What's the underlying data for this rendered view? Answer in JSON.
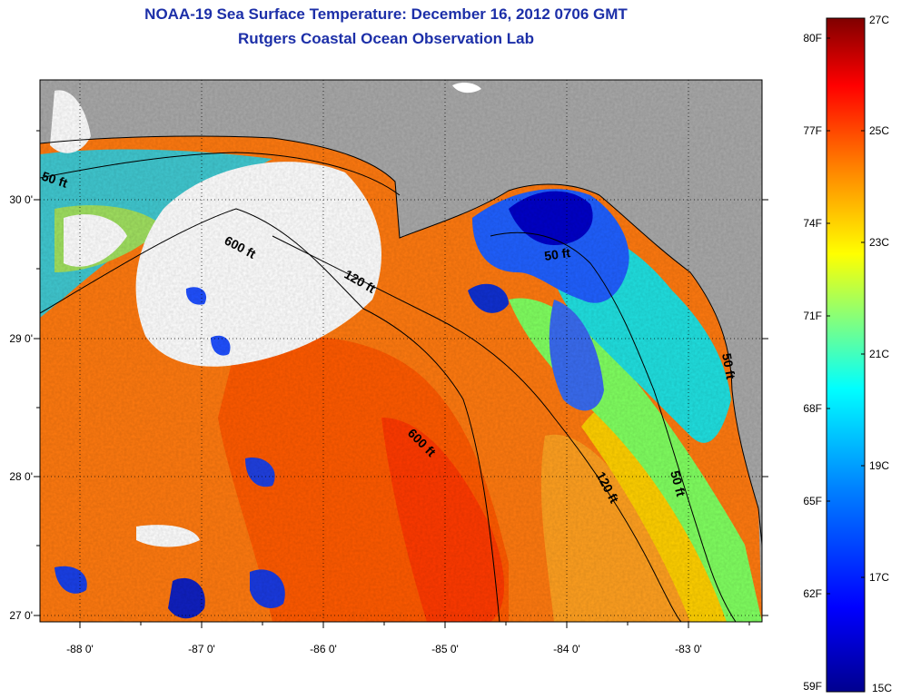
{
  "title_line1": "NOAA-19 Sea Surface Temperature:  December 16, 2012 0706 GMT",
  "title_line2": "Rutgers Coastal Ocean Observation Lab",
  "longitude_ticks": [
    "-88 0'",
    "-87 0'",
    "-86 0'",
    "-85 0'",
    "-84 0'",
    "-83 0'"
  ],
  "latitude_ticks": [
    "30 0'",
    "29 0'",
    "28 0'",
    "27 0'"
  ],
  "contour_labels": [
    "50 ft",
    "600 ft",
    "120 ft",
    "50 ft",
    "600 ft",
    "120 ft",
    "50 ft",
    "50 ft"
  ],
  "colorbar": {
    "fahrenheit": [
      "80F",
      "77F",
      "74F",
      "71F",
      "68F",
      "65F",
      "62F",
      "59F"
    ],
    "celsius": [
      "27C",
      "25C",
      "23C",
      "21C",
      "19C",
      "17C",
      "15C"
    ],
    "min_c": 15,
    "max_c": 27
  },
  "colors": {
    "title": "#1c2fa8",
    "land": "#a9a9a9",
    "cloud": "#ffffff",
    "ramp": [
      "#00008f",
      "#0000ff",
      "#0080ff",
      "#00ffff",
      "#80ff80",
      "#ffff00",
      "#ff8000",
      "#ff0000",
      "#800000"
    ]
  }
}
